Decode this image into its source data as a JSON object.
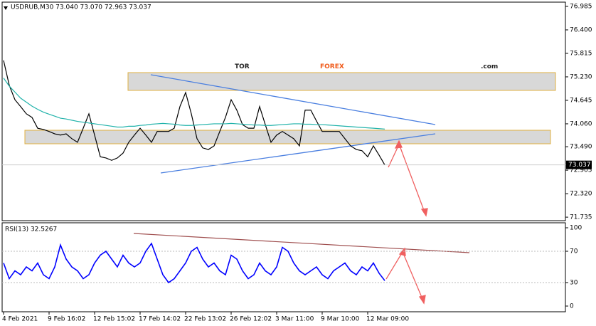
{
  "header": "USDRUB,M30  73.040 73.070 72.963 73.037",
  "logo": {
    "part1": "TOR",
    "part2": "FOREX",
    "part3": ".com"
  },
  "chart_data": [
    {
      "type": "line",
      "categories": [
        "4 Feb 2021",
        null,
        null,
        null,
        null,
        null,
        null,
        null,
        "9 Feb 16:02",
        null,
        null,
        null,
        null,
        null,
        null,
        null,
        "12 Feb 15:02",
        null,
        null,
        null,
        null,
        null,
        null,
        null,
        "17 Feb 14:02",
        null,
        null,
        null,
        null,
        null,
        null,
        null,
        "22 Feb 13:02",
        null,
        null,
        null,
        null,
        null,
        null,
        null,
        "26 Feb 12:02",
        null,
        null,
        null,
        null,
        null,
        null,
        null,
        "3 Mar 11:00",
        null,
        null,
        null,
        null,
        null,
        null,
        null,
        "9 Mar 10:00",
        null,
        null,
        null,
        null,
        null,
        null,
        null,
        "12 Mar 09:00",
        null,
        null,
        null
      ],
      "series": [
        {
          "name": "USDRUB,M30",
          "color": "#000000",
          "values": [
            75.64,
            75.02,
            74.66,
            74.49,
            74.31,
            74.22,
            73.95,
            73.92,
            73.87,
            73.81,
            73.78,
            73.81,
            73.69,
            73.6,
            73.95,
            74.31,
            73.78,
            73.24,
            73.21,
            73.15,
            73.21,
            73.33,
            73.6,
            73.78,
            73.95,
            73.78,
            73.6,
            73.87,
            73.87,
            73.87,
            73.95,
            74.49,
            74.84,
            74.31,
            73.69,
            73.46,
            73.42,
            73.51,
            73.87,
            74.22,
            74.66,
            74.4,
            74.04,
            73.95,
            73.95,
            74.49,
            74.04,
            73.6,
            73.78,
            73.87,
            73.78,
            73.69,
            73.51,
            74.4,
            74.4,
            74.13,
            73.87,
            73.87,
            73.87,
            73.87,
            73.69,
            73.51,
            73.42,
            73.39,
            73.24,
            73.51,
            73.28,
            73.037
          ]
        },
        {
          "name": "MA",
          "color": "#20b2aa",
          "values": [
            75.2,
            75.0,
            74.85,
            74.7,
            74.6,
            74.5,
            74.42,
            74.35,
            74.3,
            74.25,
            74.2,
            74.18,
            74.15,
            74.12,
            74.1,
            74.08,
            74.06,
            74.04,
            74.02,
            74.0,
            73.98,
            73.98,
            74.0,
            74.0,
            74.02,
            74.03,
            74.05,
            74.06,
            74.07,
            74.06,
            74.05,
            74.03,
            74.02,
            74.02,
            74.03,
            74.04,
            74.05,
            74.06,
            74.06,
            74.06,
            74.07,
            74.06,
            74.05,
            74.04,
            74.03,
            74.03,
            74.02,
            74.02,
            74.03,
            74.04,
            74.05,
            74.06,
            74.06,
            74.05,
            74.05,
            74.04,
            74.04,
            74.03,
            74.02,
            74.01,
            74.0,
            73.99,
            73.98,
            73.97,
            73.96,
            73.95,
            73.94,
            73.93
          ]
        }
      ],
      "ylim": [
        71.648,
        77.091
      ],
      "yticks": [
        76.985,
        {
          "value": 76.4,
          "label": "76.400"
        },
        75.815,
        {
          "value": 75.23,
          "label": "75.230"
        },
        74.645,
        {
          "value": 74.06,
          "label": "74.060"
        },
        {
          "value": 73.49,
          "label": "73.490"
        },
        72.905,
        {
          "value": 72.32,
          "label": "72.320"
        },
        71.735
      ]
    },
    {
      "type": "line",
      "title": "RSI(13) 32.5267",
      "series": [
        {
          "name": "RSI(13)",
          "color": "#0000ff",
          "values": [
            55,
            35,
            45,
            40,
            50,
            45,
            55,
            40,
            35,
            50,
            78,
            60,
            50,
            45,
            35,
            40,
            55,
            65,
            70,
            60,
            50,
            65,
            55,
            50,
            55,
            70,
            80,
            60,
            40,
            30,
            35,
            45,
            55,
            70,
            75,
            60,
            50,
            55,
            45,
            40,
            65,
            60,
            45,
            35,
            40,
            55,
            45,
            40,
            50,
            75,
            70,
            55,
            45,
            40,
            45,
            50,
            40,
            35,
            45,
            50,
            55,
            45,
            40,
            50,
            45,
            55,
            42,
            32.5267
          ]
        }
      ],
      "ylim": [
        0,
        100
      ],
      "yticks": [
        100,
        70,
        30,
        0
      ]
    }
  ]
}
